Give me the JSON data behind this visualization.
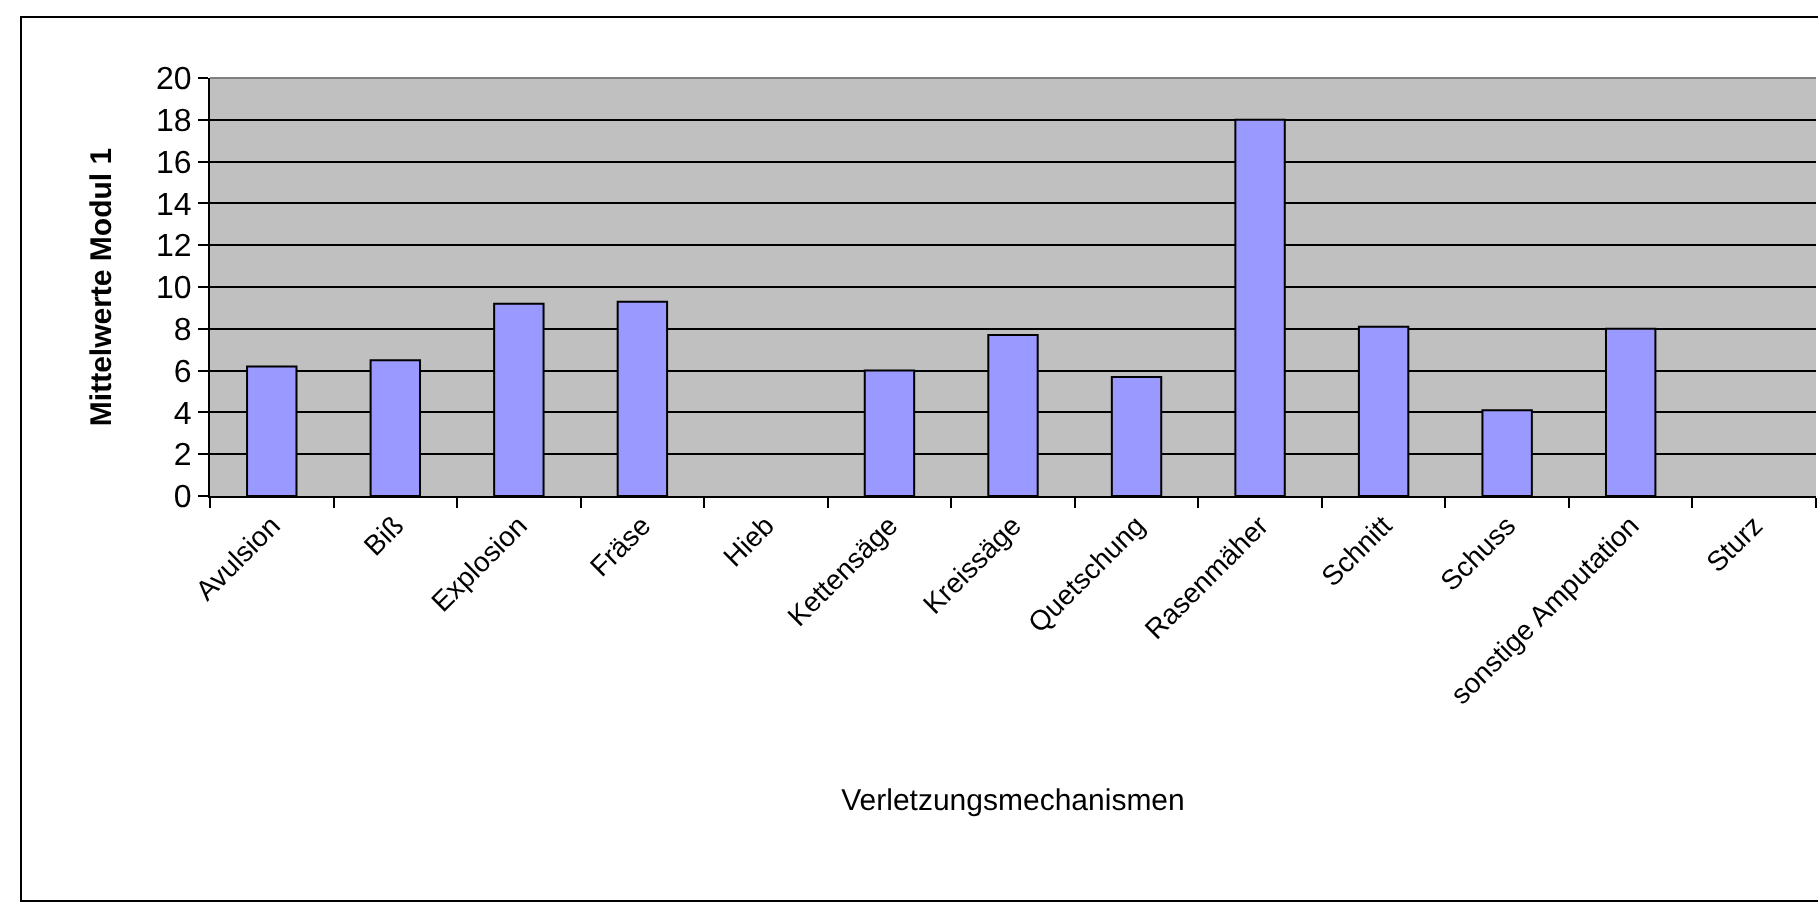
{
  "chart_data": {
    "type": "bar",
    "categories": [
      "Avulsion",
      "Biß",
      "Explosion",
      "Fräse",
      "Hieb",
      "Kettensäge",
      "Kreissäge",
      "Quetschung",
      "Rasenmäher",
      "Schnitt",
      "Schuss",
      "sonstige Amputation",
      "Sturz"
    ],
    "values": [
      6.2,
      6.5,
      9.2,
      9.3,
      null,
      6.0,
      7.7,
      5.7,
      18.0,
      8.1,
      4.1,
      8.0,
      null
    ],
    "color": "#9999ff",
    "xlabel": "Verletzungsmechanismen",
    "ylabel": "Mittelwerte Modul 1",
    "ylim": [
      0,
      20
    ],
    "yticks": [
      0,
      2,
      4,
      6,
      8,
      10,
      12,
      14,
      16,
      18,
      20
    ],
    "grid": "y",
    "legend": false
  }
}
